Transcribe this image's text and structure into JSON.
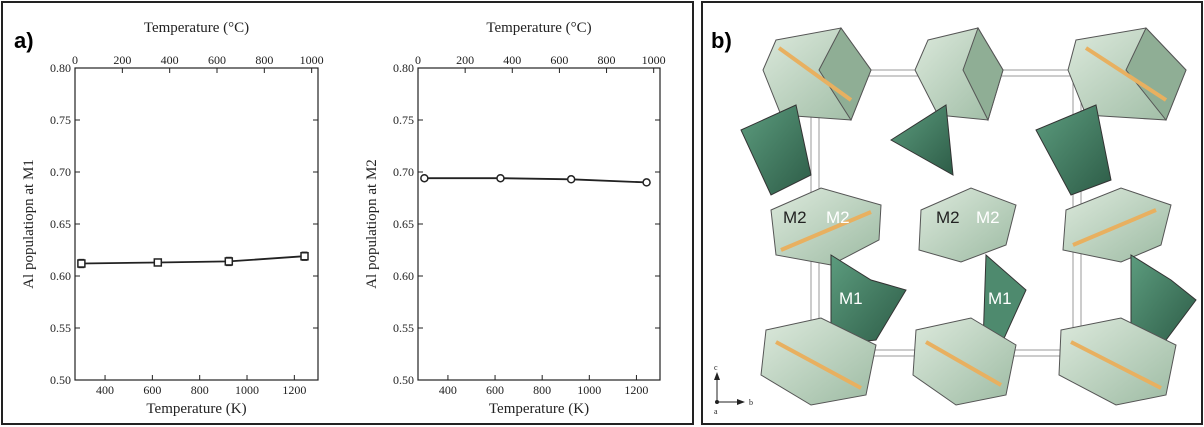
{
  "panel_a_label": "a)",
  "panel_b_label": "b)",
  "chart_data": [
    {
      "type": "line",
      "xlabel": "Temperature (K)",
      "x2label": "Temperature (°C)",
      "ylabel": "Al populatiopn at M1",
      "xlim": [
        273,
        1300
      ],
      "ylim": [
        0.5,
        0.8
      ],
      "xticks": [
        400,
        600,
        800,
        1000,
        1200
      ],
      "x2ticks": [
        0,
        200,
        400,
        600,
        800,
        1000
      ],
      "yticks": [
        "0.50",
        "0.55",
        "0.60",
        "0.65",
        "0.70",
        "0.75",
        "0.80"
      ],
      "grid": false,
      "series": [
        {
          "x": [
            300,
            623,
            923,
            1243
          ],
          "y": [
            0.612,
            0.613,
            0.614,
            0.619
          ],
          "yerr": [
            0.004,
            0.003,
            0.004,
            0.004
          ],
          "marker": "square"
        }
      ]
    },
    {
      "type": "line",
      "xlabel": "Temperature (K)",
      "x2label": "Temperature (°C)",
      "ylabel": "Al populatiopn at M2",
      "xlim": [
        273,
        1300
      ],
      "ylim": [
        0.5,
        0.8
      ],
      "xticks": [
        400,
        600,
        800,
        1000,
        1200
      ],
      "x2ticks": [
        0,
        200,
        400,
        600,
        800,
        1000
      ],
      "yticks": [
        "0.50",
        "0.55",
        "0.60",
        "0.65",
        "0.70",
        "0.75",
        "0.80"
      ],
      "grid": false,
      "series": [
        {
          "x": [
            300,
            623,
            923,
            1243
          ],
          "y": [
            0.694,
            0.694,
            0.693,
            0.69
          ],
          "marker": "circle"
        }
      ]
    }
  ],
  "structure": {
    "site_labels": [
      "M2",
      "M2",
      "M2",
      "M2",
      "M1",
      "M1"
    ],
    "axis_labels": {
      "c": "c",
      "b": "b",
      "a": "a"
    },
    "colors": {
      "light_polyhedra": "#b9d3bd",
      "dark_polyhedra": "#3f7e62",
      "bonds": "#e8b060"
    }
  }
}
